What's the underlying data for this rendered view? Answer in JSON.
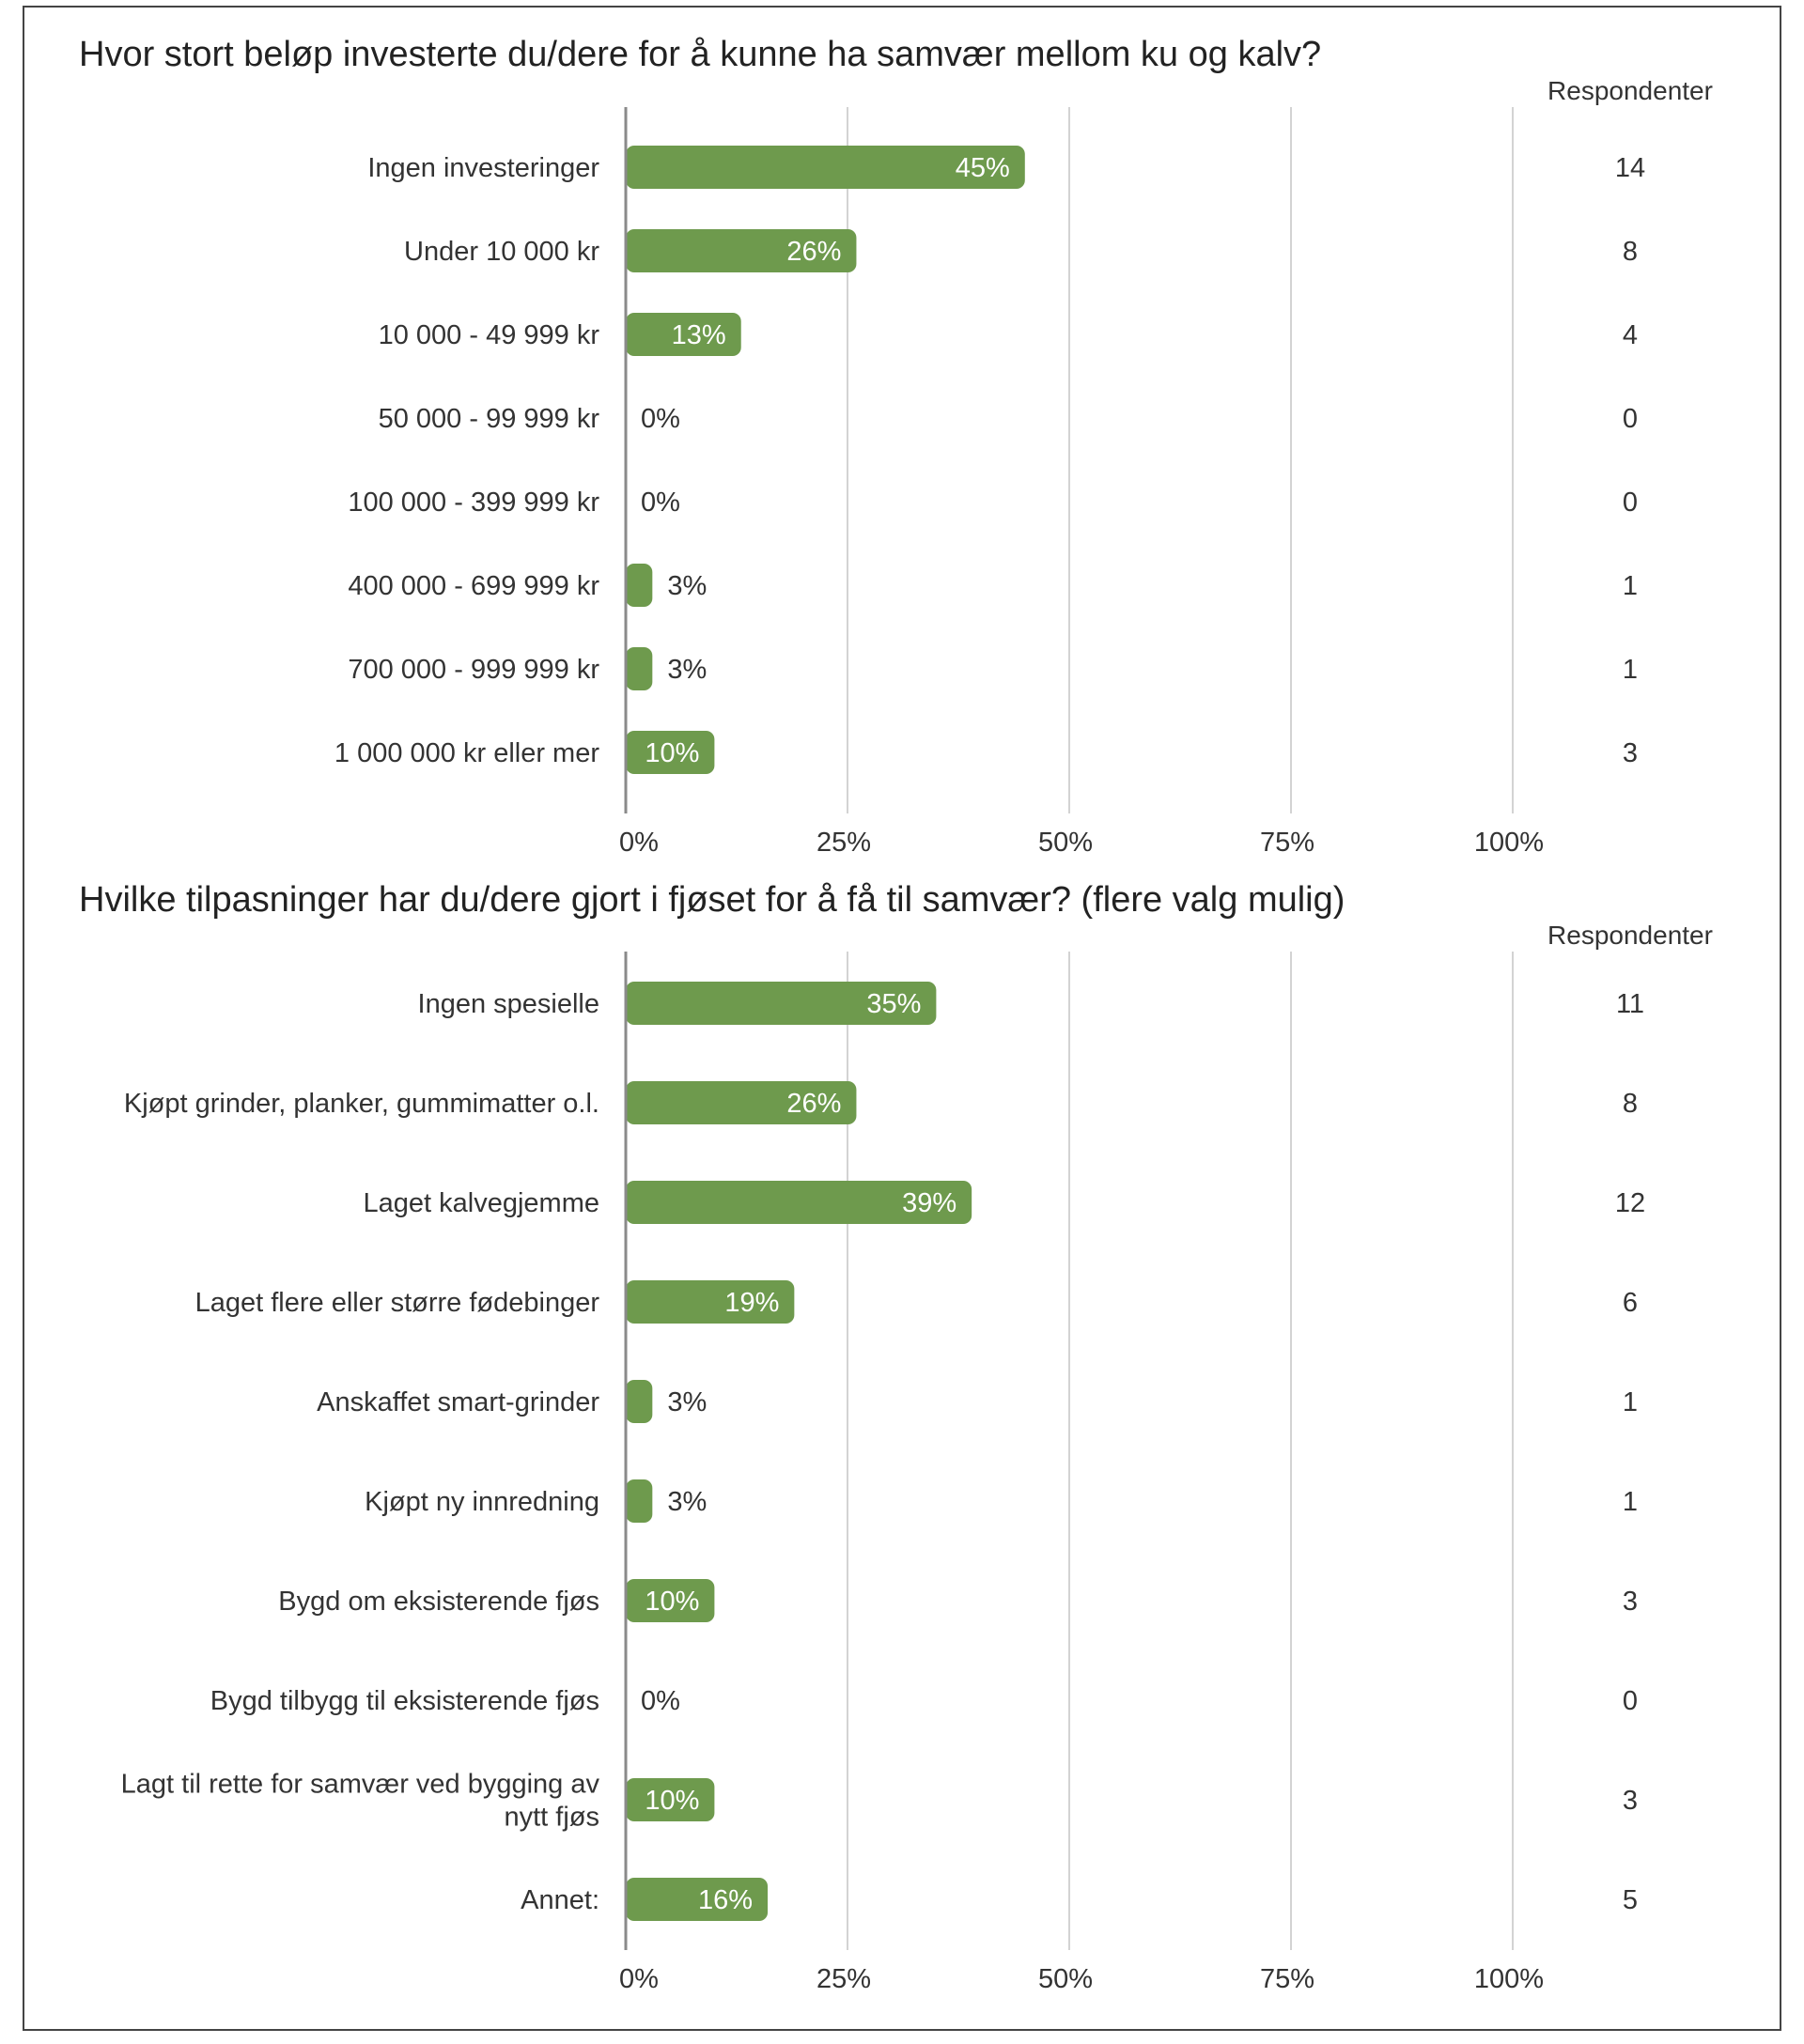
{
  "chart_data": [
    {
      "type": "bar",
      "orientation": "horizontal",
      "title": "Hvor stort beløp investerte du/dere for å kunne ha samvær mellom ku og kalv?",
      "categories": [
        "Ingen investeringer",
        "Under 10 000 kr",
        "10 000 - 49 999 kr",
        "50 000 - 99 999 kr",
        "100 000 - 399 999 kr",
        "400 000 - 699 999 kr",
        "700 000 - 999 999 kr",
        "1 000 000 kr eller mer"
      ],
      "values": [
        45,
        26,
        13,
        0,
        0,
        3,
        3,
        10
      ],
      "value_labels": [
        "45%",
        "26%",
        "13%",
        "0%",
        "0%",
        "3%",
        "3%",
        "10%"
      ],
      "respondents_header": "Respondenter",
      "respondents": [
        "14",
        "8",
        "4",
        "0",
        "0",
        "1",
        "1",
        "3"
      ],
      "xlim": [
        0,
        100
      ],
      "xticks": [
        "0%",
        "25%",
        "50%",
        "75%",
        "100%"
      ],
      "grid": true,
      "bar_color": "#6e9a4d"
    },
    {
      "type": "bar",
      "orientation": "horizontal",
      "title": "Hvilke tilpasninger har du/dere gjort i fjøset for å få til samvær? (flere valg mulig)",
      "categories": [
        [
          "Ingen spesielle"
        ],
        [
          "Kjøpt grinder, planker, gummimatter o.l."
        ],
        [
          "Laget kalvegjemme"
        ],
        [
          "Laget flere eller større fødebinger"
        ],
        [
          "Anskaffet smart-grinder"
        ],
        [
          "Kjøpt ny innredning"
        ],
        [
          "Bygd om eksisterende fjøs"
        ],
        [
          "Bygd tilbygg til eksisterende fjøs"
        ],
        [
          "Lagt til rette for samvær ved bygging av",
          "nytt fjøs"
        ],
        [
          "Annet:"
        ]
      ],
      "values": [
        35,
        26,
        39,
        19,
        3,
        3,
        10,
        0,
        10,
        16
      ],
      "value_labels": [
        "35%",
        "26%",
        "39%",
        "19%",
        "3%",
        "3%",
        "10%",
        "0%",
        "10%",
        "16%"
      ],
      "respondents_header": "Respondenter",
      "respondents": [
        "11",
        "8",
        "12",
        "6",
        "1",
        "1",
        "3",
        "0",
        "3",
        "5"
      ],
      "xlim": [
        0,
        100
      ],
      "xticks": [
        "0%",
        "25%",
        "50%",
        "75%",
        "100%"
      ],
      "grid": true,
      "bar_color": "#6e9a4d"
    }
  ]
}
